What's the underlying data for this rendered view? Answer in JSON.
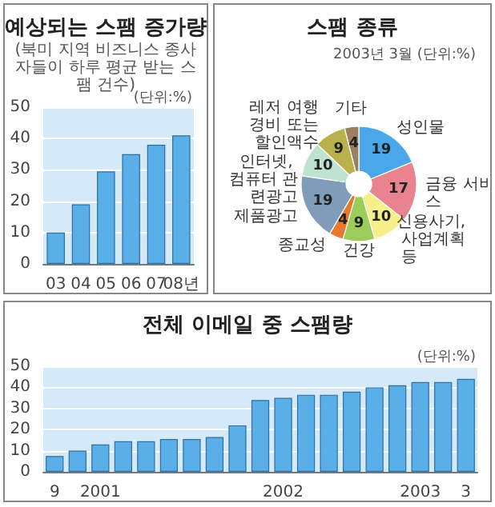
{
  "chart_data": [
    {
      "type": "bar",
      "title": "예상되는 스팸 증가량",
      "subtitle": "(북미 지역 비즈니스 종사자들이 하루 평균 받는 스팸 건수)",
      "annotations": [
        "(단위:%)"
      ],
      "categories": [
        "03",
        "04",
        "05",
        "06",
        "07",
        "08년"
      ],
      "values": [
        10,
        19,
        29.5,
        35,
        38,
        41
      ],
      "color": "#5aafe8",
      "ylim": [
        0,
        50
      ],
      "yticks": [
        0,
        10,
        20,
        30,
        40,
        50
      ],
      "grid": "y"
    },
    {
      "type": "donut",
      "title": "스팸 종류",
      "subtitle": "2003년 3월 (단위:%)",
      "categories": [
        "성인물",
        "금융 서비스",
        "신용사기, 사업계획 등",
        "건강",
        "종교성",
        "제품광고",
        "인터넷, 컴퓨터 관련광고",
        "레저 여행경비 또는 할인액수",
        "기타"
      ],
      "values": [
        19,
        17,
        10,
        9,
        4,
        19,
        10,
        9,
        4
      ],
      "colors": [
        "#4aa8ea",
        "#e8838f",
        "#f6f08a",
        "#9ccc5a",
        "#e8782e",
        "#7f9db8",
        "#bfe3cf",
        "#b9b24c",
        "#9a8060"
      ],
      "data_labels": true
    },
    {
      "type": "bar",
      "title": "전체 이메일 중 스팸량",
      "annotations": [
        "(단위:%)"
      ],
      "categories": [
        "9",
        null,
        "2001",
        null,
        null,
        null,
        null,
        null,
        null,
        null,
        "2002",
        null,
        null,
        null,
        null,
        null,
        "2003",
        null,
        "3"
      ],
      "values": [
        7.5,
        10,
        13,
        14.5,
        14.5,
        15.5,
        15.5,
        16.5,
        22,
        34,
        35,
        36.5,
        36.5,
        38,
        40,
        41,
        42.5,
        42.5,
        44
      ],
      "color": "#5aafe8",
      "ylim": [
        0,
        50
      ],
      "yticks": [
        0,
        10,
        20,
        30,
        40,
        50
      ],
      "grid": "y"
    }
  ]
}
